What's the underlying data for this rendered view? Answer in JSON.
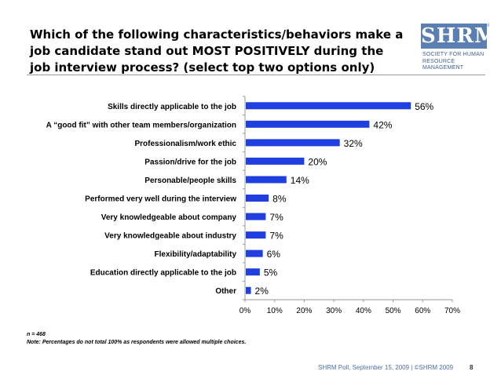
{
  "header": {
    "title": "Which of the following characteristics/behaviors make a job candidate stand out MOST POSITIVELY during the job interview process? (select top two options only)"
  },
  "logo": {
    "word": "SHRM",
    "tm": "TM",
    "line1": "SOCIETY FOR HUMAN",
    "line2": "RESOURCE MANAGEMENT"
  },
  "chart_data": {
    "type": "bar",
    "orientation": "horizontal",
    "categories": [
      "Skills directly applicable to the job",
      "A “good fit” with other team members/organization",
      "Professionalism/work ethic",
      "Passion/drive for the job",
      "Personable/people skills",
      "Performed very well during the interview",
      "Very knowledgeable about company",
      "Very knowledgeable about industry",
      "Flexibility/adaptability",
      "Education directly applicable to the job",
      "Other"
    ],
    "values": [
      56,
      42,
      32,
      20,
      14,
      8,
      7,
      7,
      6,
      5,
      2
    ],
    "data_labels": [
      "56%",
      "42%",
      "32%",
      "20%",
      "14%",
      "8%",
      "7%",
      "7%",
      "6%",
      "5%",
      "2%"
    ],
    "xlim": [
      0,
      70
    ],
    "x_ticks": [
      0,
      10,
      20,
      30,
      40,
      50,
      60,
      70
    ],
    "x_tick_labels": [
      "0%",
      "10%",
      "20%",
      "30%",
      "40%",
      "50%",
      "60%",
      "70%"
    ],
    "bar_color": "#1f3fe0",
    "grid": false,
    "legend": "none"
  },
  "notes": {
    "sample": "n = 468",
    "caveat": "Note: Percentages do not total 100% as respondents were allowed multiple choices."
  },
  "footer": {
    "source": "SHRM Poll, September 15, 2009 | ©SHRM 2009",
    "page": "8"
  }
}
